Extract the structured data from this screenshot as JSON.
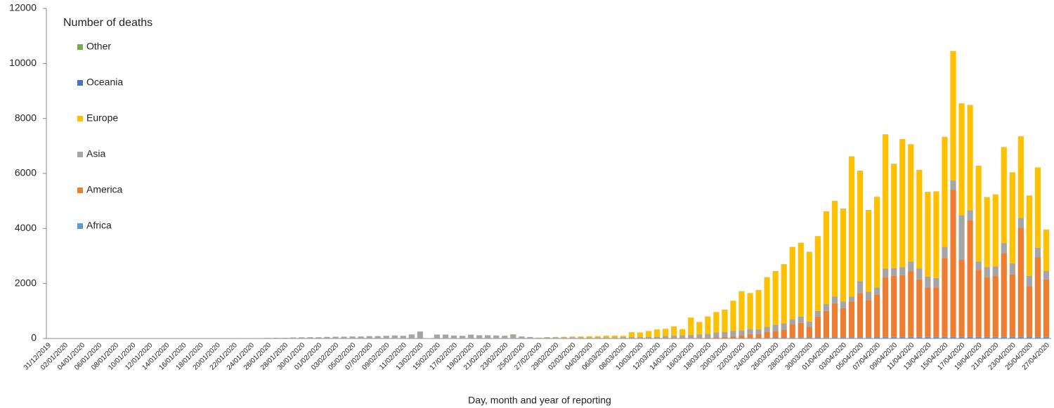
{
  "chart_data": {
    "type": "stacked_bar",
    "legend_title": "Number of deaths",
    "x_label": "Day, month and year of reporting",
    "ylim": [
      0,
      12000
    ],
    "yticks": [
      0,
      2000,
      4000,
      6000,
      8000,
      10000,
      12000
    ],
    "legend_position": "upper left",
    "categories": [
      "31/12/2019",
      null,
      "02/01/2020",
      null,
      "04/01/2020",
      null,
      "06/01/2020",
      null,
      "08/01/2020",
      null,
      "10/01/2020",
      null,
      "12/01/2020",
      null,
      "14/01/2020",
      null,
      "16/01/2020",
      null,
      "18/01/2020",
      null,
      "20/01/2020",
      null,
      "22/01/2020",
      null,
      "24/01/2020",
      null,
      "26/01/2020",
      null,
      "28/01/2020",
      null,
      "30/01/2020",
      null,
      "01/02/2020",
      null,
      "03/02/2020",
      null,
      "05/02/2020",
      null,
      "07/02/2020",
      null,
      "09/02/2020",
      null,
      "11/02/2020",
      null,
      "13/02/2020",
      null,
      "15/02/2020",
      null,
      "17/02/2020",
      null,
      "19/02/2020",
      null,
      "21/02/2020",
      null,
      "23/02/2020",
      null,
      "25/02/2020",
      null,
      "27/02/2020",
      null,
      "29/02/2020",
      null,
      "02/03/2020",
      null,
      "04/03/2020",
      null,
      "06/03/2020",
      null,
      "08/03/2020",
      null,
      "10/03/2020",
      null,
      "12/03/2020",
      null,
      "14/03/2020",
      null,
      "16/03/2020",
      null,
      "18/03/2020",
      null,
      "20/03/2020",
      null,
      "22/03/2020",
      null,
      "24/03/2020",
      null,
      "26/03/2020",
      null,
      "28/03/2020",
      null,
      "30/03/2020",
      null,
      "01/04/2020",
      null,
      "03/04/2020",
      null,
      "05/04/2020",
      null,
      "07/04/2020",
      null,
      "09/04/2020",
      null,
      "11/04/2020",
      null,
      "13/04/2020",
      null,
      "15/04/2020",
      null,
      "17/04/2020",
      null,
      "19/04/2020",
      null,
      "21/04/2020",
      null,
      "23/04/2020",
      null,
      "25/04/2020",
      null,
      "27/04/2020"
    ],
    "series": [
      {
        "name": "Africa",
        "color": "#5b9bd5",
        "values": [
          0,
          0,
          0,
          0,
          0,
          0,
          0,
          0,
          0,
          0,
          0,
          0,
          0,
          0,
          0,
          0,
          0,
          0,
          0,
          0,
          0,
          0,
          0,
          0,
          0,
          0,
          0,
          0,
          0,
          0,
          0,
          0,
          0,
          0,
          0,
          0,
          0,
          0,
          0,
          0,
          0,
          0,
          0,
          0,
          0,
          0,
          0,
          0,
          0,
          0,
          0,
          0,
          0,
          0,
          0,
          0,
          0,
          0,
          0,
          0,
          0,
          0,
          0,
          0,
          0,
          0,
          0,
          0,
          0,
          1,
          1,
          1,
          1,
          1,
          1,
          1,
          3,
          5,
          5,
          8,
          8,
          10,
          12,
          15,
          20,
          20,
          25,
          25,
          30,
          30,
          35,
          40,
          30,
          40,
          40,
          45,
          45,
          45,
          50,
          55,
          55,
          60,
          60,
          60,
          60,
          60,
          60,
          60,
          60,
          60,
          55,
          55,
          55,
          60,
          60,
          70,
          65,
          60,
          60
        ]
      },
      {
        "name": "America",
        "color": "#ed7d31",
        "values": [
          0,
          0,
          0,
          0,
          0,
          0,
          0,
          0,
          0,
          0,
          0,
          0,
          0,
          0,
          0,
          0,
          0,
          0,
          0,
          0,
          0,
          0,
          0,
          0,
          0,
          0,
          0,
          0,
          0,
          0,
          0,
          0,
          0,
          0,
          0,
          0,
          0,
          0,
          0,
          0,
          0,
          0,
          0,
          0,
          0,
          0,
          0,
          0,
          0,
          0,
          0,
          0,
          0,
          0,
          0,
          0,
          0,
          0,
          0,
          0,
          0,
          0,
          0,
          0,
          1,
          1,
          1,
          1,
          2,
          2,
          3,
          3,
          4,
          7,
          9,
          9,
          12,
          15,
          25,
          32,
          52,
          70,
          108,
          145,
          150,
          230,
          245,
          295,
          490,
          540,
          385,
          760,
          970,
          1240,
          1060,
          1305,
          1605,
          1355,
          1550,
          2175,
          2225,
          2240,
          2390,
          2090,
          1790,
          1800,
          2870,
          5340,
          2800,
          4240,
          2445,
          2165,
          2215,
          3040,
          2270,
          3950,
          1835,
          2890,
          2090
        ]
      },
      {
        "name": "Asia",
        "color": "#a5a5a5",
        "values": [
          0,
          0,
          0,
          0,
          0,
          0,
          0,
          0,
          0,
          0,
          0,
          1,
          0,
          0,
          0,
          0,
          1,
          0,
          1,
          0,
          3,
          3,
          8,
          8,
          16,
          15,
          24,
          26,
          26,
          38,
          43,
          46,
          45,
          57,
          64,
          65,
          73,
          73,
          86,
          89,
          97,
          108,
          97,
          146,
          254,
          13,
          143,
          142,
          106,
          98,
          139,
          115,
          118,
          109,
          97,
          150,
          71,
          52,
          29,
          44,
          47,
          40,
          45,
          40,
          39,
          39,
          39,
          39,
          48,
          47,
          46,
          56,
          55,
          82,
          100,
          110,
          115,
          130,
          140,
          180,
          170,
          200,
          180,
          190,
          160,
          170,
          230,
          230,
          180,
          230,
          200,
          200,
          250,
          250,
          250,
          170,
          430,
          300,
          260,
          310,
          280,
          300,
          350,
          400,
          400,
          340,
          400,
          350,
          1620,
          360,
          300,
          380,
          350,
          370,
          400,
          360,
          380,
          350,
          300
        ]
      },
      {
        "name": "Europe",
        "color": "#ffc000",
        "values": [
          0,
          0,
          0,
          0,
          0,
          0,
          0,
          0,
          0,
          0,
          0,
          0,
          0,
          0,
          0,
          0,
          0,
          0,
          0,
          0,
          0,
          0,
          0,
          0,
          0,
          0,
          0,
          0,
          0,
          0,
          0,
          0,
          0,
          0,
          0,
          0,
          0,
          0,
          0,
          0,
          0,
          0,
          0,
          0,
          0,
          0,
          1,
          0,
          0,
          0,
          0,
          0,
          0,
          1,
          1,
          4,
          3,
          2,
          5,
          4,
          8,
          19,
          25,
          33,
          41,
          45,
          60,
          63,
          47,
          179,
          168,
          212,
          270,
          262,
          330,
          220,
          629,
          450,
          628,
          739,
          819,
          1088,
          1418,
          1299,
          1427,
          1808,
          1947,
          2146,
          2628,
          2677,
          2526,
          2717,
          3367,
          3466,
          3365,
          5096,
          4017,
          2965,
          3286,
          4875,
          3786,
          4646,
          4257,
          3575,
          3077,
          3148,
          3997,
          4698,
          4067,
          3827,
          3479,
          2538,
          2618,
          3489,
          3308,
          2969,
          2919,
          2919,
          1508
        ]
      },
      {
        "name": "Oceania",
        "color": "#4472c4",
        "values": [
          0,
          0,
          0,
          0,
          0,
          0,
          0,
          0,
          0,
          0,
          0,
          0,
          0,
          0,
          0,
          0,
          0,
          0,
          0,
          0,
          0,
          0,
          0,
          0,
          0,
          0,
          0,
          0,
          0,
          0,
          0,
          0,
          0,
          0,
          0,
          0,
          0,
          0,
          0,
          0,
          0,
          0,
          0,
          0,
          0,
          0,
          0,
          0,
          0,
          0,
          0,
          0,
          0,
          0,
          0,
          0,
          0,
          0,
          0,
          0,
          0,
          1,
          0,
          0,
          0,
          0,
          0,
          0,
          0,
          0,
          0,
          0,
          0,
          0,
          0,
          0,
          1,
          0,
          2,
          1,
          1,
          2,
          2,
          1,
          3,
          2,
          3,
          4,
          2,
          3,
          4,
          3,
          3,
          4,
          5,
          4,
          3,
          5,
          4,
          5,
          4,
          4,
          3,
          5,
          3,
          2,
          3,
          2,
          3,
          3,
          1,
          2,
          2,
          1,
          2,
          1,
          1,
          1,
          2
        ]
      },
      {
        "name": "Other",
        "color": "#70ad47",
        "values": [
          0,
          0,
          0,
          0,
          0,
          0,
          0,
          0,
          0,
          0,
          0,
          0,
          0,
          0,
          0,
          0,
          0,
          0,
          0,
          0,
          0,
          0,
          0,
          0,
          0,
          0,
          0,
          0,
          0,
          0,
          0,
          0,
          0,
          0,
          0,
          0,
          0,
          0,
          0,
          0,
          0,
          0,
          0,
          0,
          0,
          0,
          0,
          0,
          0,
          0,
          0,
          2,
          0,
          0,
          1,
          0,
          0,
          0,
          0,
          2,
          0,
          0,
          0,
          0,
          0,
          0,
          0,
          0,
          0,
          0,
          0,
          0,
          0,
          0,
          0,
          0,
          0,
          0,
          0,
          0,
          0,
          0,
          0,
          0,
          0,
          0,
          0,
          0,
          0,
          0,
          0,
          0,
          0,
          0,
          0,
          0,
          0,
          0,
          0,
          0,
          0,
          0,
          0,
          0,
          0,
          0,
          0,
          0,
          0,
          0,
          0,
          0,
          0,
          0,
          0,
          0,
          0,
          0,
          0
        ]
      }
    ]
  }
}
